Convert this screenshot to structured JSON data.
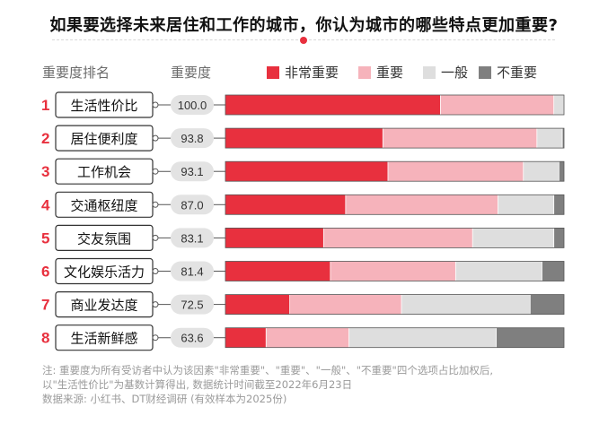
{
  "title": "如果要选择未来居住和工作的城市，你认为城市的哪些特点更加重要?",
  "header": {
    "rank_label": "重要度排名",
    "score_label": "重要度"
  },
  "colors": {
    "very_important": "#e8303e",
    "important": "#f6b3bb",
    "average": "#dedede",
    "not_important": "#7f7f7f",
    "rank_number": "#e8303e"
  },
  "chart_data": {
    "type": "bar",
    "orientation": "horizontal",
    "stacked": true,
    "normalized": true,
    "categories": [
      "生活性价比",
      "居住便利度",
      "工作机会",
      "交通枢纽度",
      "交友氛围",
      "文化娱乐活力",
      "商业发达度",
      "生活新鲜感"
    ],
    "ranks": [
      "1",
      "2",
      "3",
      "4",
      "5",
      "6",
      "7",
      "8"
    ],
    "scores": [
      "100.0",
      "93.8",
      "93.1",
      "87.0",
      "83.1",
      "81.4",
      "72.5",
      "63.6"
    ],
    "legend": [
      "非常重要",
      "重要",
      "一般",
      "不重要"
    ],
    "series": [
      {
        "name": "非常重要",
        "values": [
          63.5,
          46.5,
          48.0,
          35.5,
          29.0,
          31.0,
          19.0,
          12.0
        ]
      },
      {
        "name": "重要",
        "values": [
          33.5,
          45.5,
          40.0,
          45.0,
          44.0,
          37.0,
          33.0,
          24.5
        ]
      },
      {
        "name": "一般",
        "values": [
          3.0,
          7.5,
          10.5,
          16.5,
          24.0,
          25.5,
          38.0,
          43.5
        ]
      },
      {
        "name": "不重要",
        "values": [
          0.0,
          0.5,
          1.5,
          3.0,
          3.0,
          6.5,
          10.0,
          20.0
        ]
      }
    ],
    "xlim": [
      0,
      100
    ],
    "grid": false,
    "legend_position": "top"
  },
  "footnote": {
    "line1": "注: 重要度为所有受访者中认为该因素\"非常重要\"、\"重要\"、\"一般\"、\"不重要\"四个选项占比加权后,",
    "line2": "以\"生活性价比\"为基数计算得出, 数据统计时间截至2022年6月23日",
    "line3": "数据来源: 小红书、DT财经调研 (有效样本为2025份)"
  }
}
